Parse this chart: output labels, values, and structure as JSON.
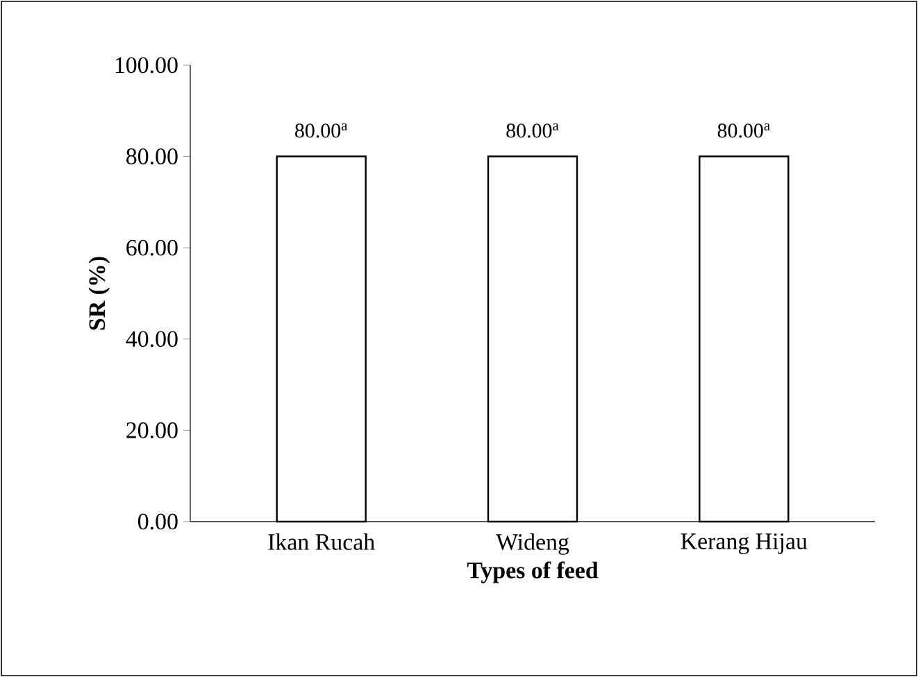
{
  "chart_data": {
    "type": "bar",
    "xlabel": "Types of feed",
    "ylabel": "SR (%)",
    "categories": [
      "Ikan Rucah",
      "Wideng",
      "Kerang Hijau"
    ],
    "values": [
      80.0,
      80.0,
      80.0
    ],
    "value_labels": [
      "80.00$^{a}$",
      "80.00$^{a}$",
      "80.00$^{a}$"
    ],
    "color": "#ffffff",
    "ylim": [
      0,
      100
    ],
    "yticks": [
      {
        "value": 0,
        "label": "0.00"
      },
      {
        "value": 20,
        "label": "20.00"
      },
      {
        "value": 40,
        "label": "40.00"
      },
      {
        "value": 60,
        "label": "60.00"
      },
      {
        "value": 80,
        "label": "80.00"
      },
      {
        "value": 100,
        "label": "100.00"
      }
    ],
    "grid": false
  }
}
